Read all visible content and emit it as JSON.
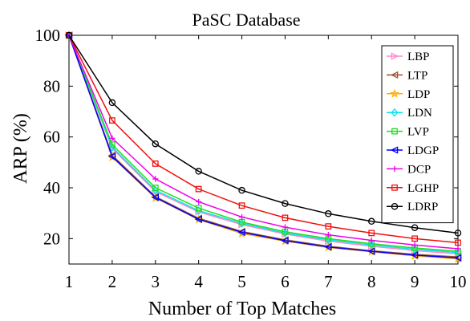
{
  "chart_data": {
    "type": "line",
    "title": "PaSC Database",
    "xlabel": "Number of Top Matches",
    "ylabel": "ARP (%)",
    "x": [
      1,
      2,
      3,
      4,
      5,
      6,
      7,
      8,
      9,
      10
    ],
    "xlim": [
      1,
      10
    ],
    "ylim": [
      10,
      100
    ],
    "xticks": [
      "1",
      "2",
      "3",
      "4",
      "5",
      "6",
      "7",
      "8",
      "9",
      "10"
    ],
    "yticks": [
      "20",
      "40",
      "60",
      "80",
      "100"
    ],
    "grid": false,
    "legend_position": "top-right",
    "series": [
      {
        "name": "LBP",
        "color": "#ff88cc",
        "marker": "triangle-right",
        "values": [
          100,
          55.5,
          38.5,
          30.5,
          25.5,
          21.8,
          19.0,
          17.0,
          15.3,
          14.0
        ]
      },
      {
        "name": "LTP",
        "color": "#a0522d",
        "marker": "triangle-left",
        "values": [
          100,
          52.8,
          36.5,
          28.0,
          22.8,
          19.5,
          17.0,
          15.2,
          13.8,
          12.8
        ]
      },
      {
        "name": "LDP",
        "color": "#ffb000",
        "marker": "star",
        "values": [
          100,
          52.0,
          36.0,
          27.5,
          22.0,
          19.0,
          16.5,
          14.8,
          13.2,
          12.0
        ]
      },
      {
        "name": "LDN",
        "color": "#00e5ee",
        "marker": "diamond",
        "values": [
          100,
          56.0,
          39.0,
          31.0,
          26.0,
          22.2,
          19.5,
          17.5,
          15.8,
          14.5
        ]
      },
      {
        "name": "LVP",
        "color": "#22dd22",
        "marker": "square",
        "values": [
          100,
          57.0,
          40.0,
          32.0,
          26.5,
          22.7,
          20.0,
          18.0,
          16.3,
          15.0
        ]
      },
      {
        "name": "LDGP",
        "color": "#0000ff",
        "marker": "triangle-left",
        "values": [
          100,
          52.3,
          36.2,
          27.6,
          22.5,
          19.2,
          16.7,
          15.0,
          13.5,
          12.4
        ]
      },
      {
        "name": "DCP",
        "color": "#ee00ee",
        "marker": "plus",
        "values": [
          100,
          59.5,
          43.5,
          34.5,
          28.5,
          24.5,
          21.5,
          19.3,
          17.5,
          16.0
        ]
      },
      {
        "name": "LGHP",
        "color": "#ee1111",
        "marker": "square",
        "values": [
          100,
          66.5,
          49.5,
          39.5,
          33.0,
          28.2,
          24.8,
          22.2,
          20.0,
          18.4
        ]
      },
      {
        "name": "LDRP",
        "color": "#000000",
        "marker": "circle",
        "values": [
          100,
          73.5,
          57.3,
          46.5,
          39.0,
          33.8,
          29.8,
          26.8,
          24.3,
          22.2
        ]
      }
    ]
  }
}
